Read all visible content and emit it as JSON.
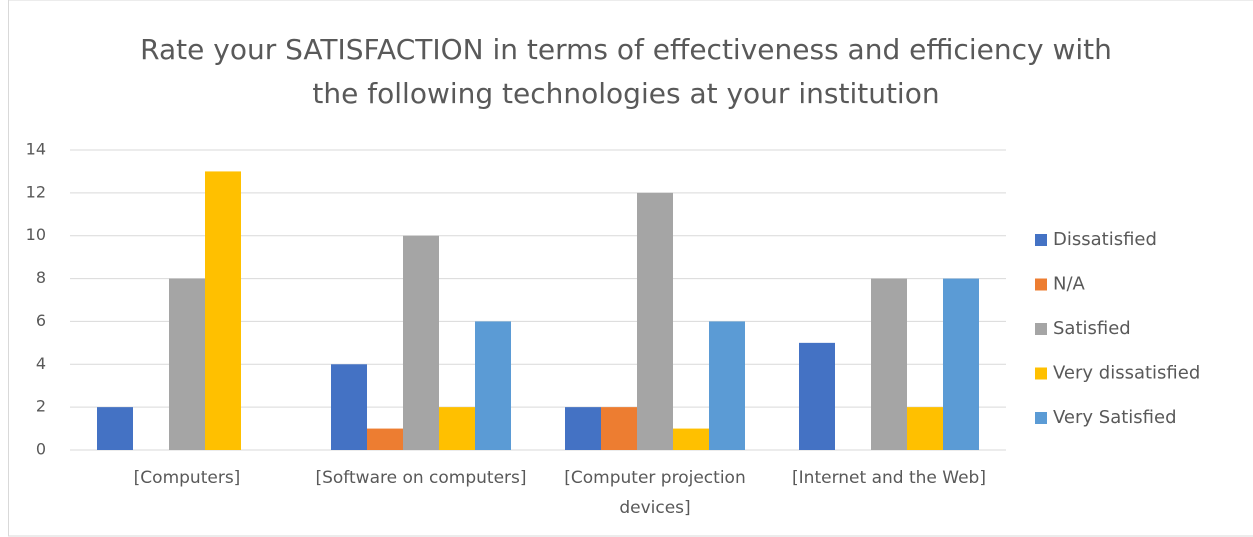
{
  "chart_data": {
    "type": "bar",
    "title": "Rate your SATISFACTION in terms of effectiveness and efficiency with the following technologies at your institution",
    "categories": [
      "[Computers]",
      "[Software on computers]",
      "[Computer projection devices]",
      "[Internet and the Web]"
    ],
    "series": [
      {
        "name": "Dissatisfied",
        "color": "#4472c4",
        "values": [
          2,
          4,
          2,
          5
        ]
      },
      {
        "name": "N/A",
        "color": "#ed7d31",
        "values": [
          0,
          1,
          2,
          0
        ]
      },
      {
        "name": "Satisfied",
        "color": "#a5a5a5",
        "values": [
          8,
          10,
          12,
          8
        ]
      },
      {
        "name": "Very dissatisfied",
        "color": "#ffc000",
        "values": [
          13,
          2,
          1,
          2
        ]
      },
      {
        "name": "Very Satisfied",
        "color": "#5b9bd5",
        "values": [
          0,
          6,
          6,
          8
        ]
      }
    ],
    "ylim": [
      0,
      14
    ],
    "yticks": [
      0,
      2,
      4,
      6,
      8,
      10,
      12,
      14
    ],
    "grid": true,
    "legend": "right"
  }
}
